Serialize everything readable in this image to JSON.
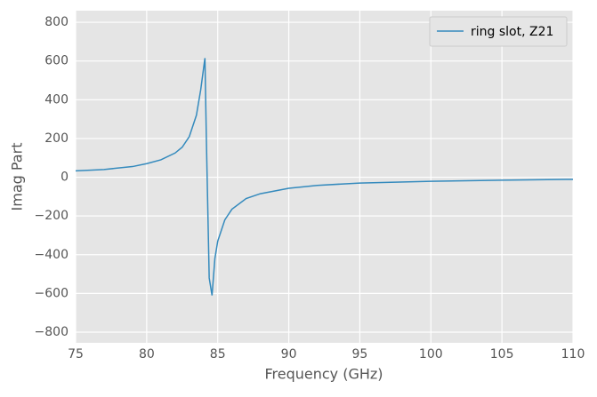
{
  "chart_data": {
    "type": "line",
    "x_label": "Frequency (GHz)",
    "y_label": "Imag Part",
    "x": [
      75,
      77,
      79,
      80,
      81,
      82,
      82.5,
      83,
      83.5,
      83.8,
      84.0,
      84.1,
      84.2,
      84.4,
      84.6,
      84.8,
      85,
      85.5,
      86,
      87,
      88,
      90,
      92,
      95,
      100,
      105,
      110
    ],
    "series": [
      {
        "name": "ring slot, Z21",
        "color": "#348ABD",
        "values": [
          33,
          40,
          55,
          70,
          90,
          125,
          155,
          210,
          320,
          450,
          560,
          615,
          200,
          -520,
          -610,
          -420,
          -330,
          -220,
          -165,
          -110,
          -85,
          -57,
          -42,
          -30,
          -21,
          -15,
          -11
        ]
      }
    ],
    "xlim": [
      75,
      110
    ],
    "xticks": [
      75,
      80,
      85,
      90,
      95,
      100,
      105,
      110
    ],
    "ylim": [
      -855,
      860
    ],
    "yticks": [
      {
        "value": -800,
        "label": "−800"
      },
      {
        "value": -600,
        "label": "−600"
      },
      {
        "value": -400,
        "label": "−400"
      },
      {
        "value": -200,
        "label": "−200"
      },
      0,
      200,
      400,
      600,
      800
    ],
    "grid": true,
    "legend": "upper right"
  }
}
